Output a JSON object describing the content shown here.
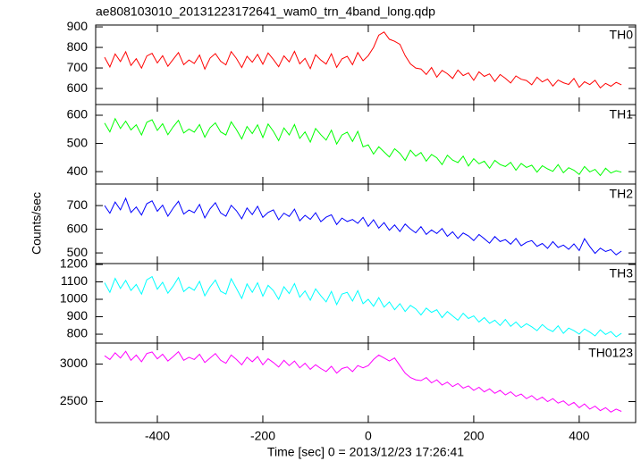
{
  "chart_data": {
    "type": "line",
    "title": "ae808103010_20131223172641_wam0_trn_4band_long.qdp",
    "x_label": "Time [sec] 0 = 2013/12/23 17:26:41",
    "y_label": "Counts/sec",
    "xlim": [
      -517,
      507
    ],
    "xticks": [
      -400,
      -200,
      0,
      200,
      400
    ],
    "x": [
      -500,
      -490,
      -480,
      -470,
      -460,
      -450,
      -440,
      -430,
      -420,
      -410,
      -400,
      -390,
      -380,
      -370,
      -360,
      -350,
      -340,
      -330,
      -320,
      -310,
      -300,
      -290,
      -280,
      -270,
      -260,
      -250,
      -240,
      -230,
      -220,
      -210,
      -200,
      -190,
      -180,
      -170,
      -160,
      -150,
      -140,
      -130,
      -120,
      -110,
      -100,
      -90,
      -80,
      -70,
      -60,
      -50,
      -40,
      -30,
      -20,
      -10,
      0,
      10,
      20,
      30,
      40,
      50,
      60,
      70,
      80,
      90,
      100,
      110,
      120,
      130,
      140,
      150,
      160,
      170,
      180,
      190,
      200,
      210,
      220,
      230,
      240,
      250,
      260,
      270,
      280,
      290,
      300,
      310,
      320,
      330,
      340,
      350,
      360,
      370,
      380,
      390,
      400,
      410,
      420,
      430,
      440,
      450,
      460,
      470,
      480
    ],
    "series": [
      {
        "name": "TH0",
        "color": "#ff0000",
        "ylim": [
          522,
          909
        ],
        "yticks": [
          600,
          700,
          800,
          900
        ],
        "values": [
          752,
          705,
          768,
          731,
          779,
          712,
          745,
          699,
          758,
          771,
          724,
          760,
          708,
          742,
          775,
          716,
          739,
          722,
          763,
          694,
          748,
          770,
          733,
          715,
          780,
          746,
          702,
          757,
          728,
          766,
          718,
          773,
          741,
          706,
          759,
          730,
          781,
          720,
          747,
          697,
          764,
          738,
          719,
          769,
          703,
          744,
          757,
          716,
          775,
          735,
          760,
          800,
          860,
          875,
          840,
          830,
          815,
          760,
          720,
          700,
          695,
          668,
          702,
          655,
          688,
          672,
          649,
          690,
          663,
          676,
          640,
          681,
          659,
          671,
          634,
          668,
          650,
          627,
          661,
          645,
          639,
          618,
          655,
          632,
          646,
          612,
          641,
          628,
          620,
          649,
          606,
          633,
          619,
          640,
          603,
          625,
          611,
          630,
          618
        ]
      },
      {
        "name": "TH1",
        "color": "#00ff00",
        "ylim": [
          356,
          638
        ],
        "yticks": [
          400,
          500,
          600
        ],
        "values": [
          572,
          541,
          588,
          553,
          579,
          548,
          566,
          530,
          575,
          584,
          546,
          570,
          531,
          559,
          582,
          537,
          551,
          540,
          567,
          522,
          556,
          573,
          541,
          530,
          577,
          549,
          516,
          560,
          535,
          566,
          521,
          569,
          543,
          510,
          555,
          530,
          567,
          518,
          541,
          505,
          553,
          531,
          512,
          547,
          498,
          530,
          540,
          507,
          543,
          488,
          495,
          462,
          488,
          470,
          452,
          481,
          465,
          440,
          476,
          455,
          468,
          437,
          461,
          449,
          425,
          458,
          441,
          432,
          455,
          420,
          446,
          428,
          437,
          412,
          440,
          425,
          418,
          433,
          405,
          429,
          415,
          423,
          398,
          421,
          410,
          401,
          425,
          396,
          414,
          405,
          390,
          418,
          399,
          408,
          386,
          412,
          395,
          403,
          398
        ]
      },
      {
        "name": "TH2",
        "color": "#0000ff",
        "ylim": [
          455,
          791
        ],
        "yticks": [
          500,
          600,
          700
        ],
        "values": [
          700,
          668,
          715,
          682,
          731,
          671,
          694,
          660,
          708,
          720,
          676,
          702,
          655,
          689,
          718,
          664,
          681,
          670,
          705,
          648,
          686,
          712,
          669,
          655,
          701,
          678,
          644,
          690,
          662,
          697,
          650,
          671,
          682,
          640,
          668,
          654,
          685,
          636,
          659,
          642,
          670,
          632,
          651,
          661,
          620,
          647,
          633,
          641,
          625,
          650,
          612,
          640,
          605,
          628,
          596,
          618,
          590,
          622,
          601,
          585,
          611,
          578,
          597,
          582,
          603,
          570,
          589,
          561,
          584,
          572,
          552,
          578,
          560,
          541,
          569,
          548,
          556,
          537,
          561,
          530,
          545,
          552,
          528,
          540,
          519,
          548,
          523,
          533,
          515,
          538,
          510,
          560,
          527,
          498,
          520,
          506,
          514,
          492,
          508
        ]
      },
      {
        "name": "TH3",
        "color": "#00ffff",
        "ylim": [
          749,
          1205
        ],
        "yticks": [
          800,
          900,
          1000,
          1100,
          1200
        ],
        "values": [
          1095,
          1040,
          1120,
          1062,
          1108,
          1051,
          1085,
          1030,
          1112,
          1130,
          1058,
          1098,
          1035,
          1076,
          1125,
          1044,
          1070,
          1052,
          1103,
          1020,
          1071,
          1110,
          1046,
          1030,
          1118,
          1062,
          1005,
          1088,
          1040,
          1095,
          1018,
          1080,
          1050,
          1000,
          1072,
          1033,
          1090,
          1012,
          1048,
          995,
          1060,
          1020,
          985,
          1045,
          970,
          1030,
          1040,
          990,
          1050,
          975,
          1000,
          960,
          1010,
          955,
          985,
          940,
          975,
          930,
          965,
          945,
          910,
          950,
          925,
          940,
          895,
          930,
          905,
          880,
          920,
          890,
          905,
          870,
          895,
          862,
          880,
          850,
          885,
          845,
          870,
          838,
          860,
          842,
          820,
          855,
          830,
          815,
          848,
          805,
          835,
          820,
          800,
          830,
          812,
          790,
          825,
          798,
          815,
          785,
          805
        ]
      },
      {
        "name": "TH0123",
        "color": "#ff00ff",
        "ylim": [
          2221,
          3279
        ],
        "yticks": [
          2500,
          3000
        ],
        "values": [
          3110,
          3060,
          3150,
          3080,
          3170,
          3050,
          3120,
          3030,
          3140,
          3160,
          3070,
          3130,
          3040,
          3100,
          3165,
          3050,
          3090,
          3060,
          3130,
          3020,
          3080,
          3140,
          3050,
          3010,
          3120,
          3060,
          2990,
          3090,
          3030,
          3100,
          2990,
          3070,
          3020,
          2960,
          3050,
          2980,
          3040,
          2950,
          3010,
          2930,
          2990,
          2940,
          2900,
          2970,
          2880,
          2940,
          2960,
          2900,
          2980,
          2950,
          2980,
          3060,
          3120,
          3080,
          3040,
          3080,
          2980,
          2880,
          2820,
          2790,
          2780,
          2820,
          2750,
          2790,
          2720,
          2760,
          2700,
          2740,
          2680,
          2710,
          2650,
          2690,
          2630,
          2670,
          2610,
          2650,
          2590,
          2630,
          2570,
          2600,
          2540,
          2580,
          2520,
          2560,
          2500,
          2540,
          2480,
          2510,
          2450,
          2490,
          2420,
          2470,
          2400,
          2440,
          2380,
          2420,
          2360,
          2400,
          2370
        ]
      }
    ]
  }
}
